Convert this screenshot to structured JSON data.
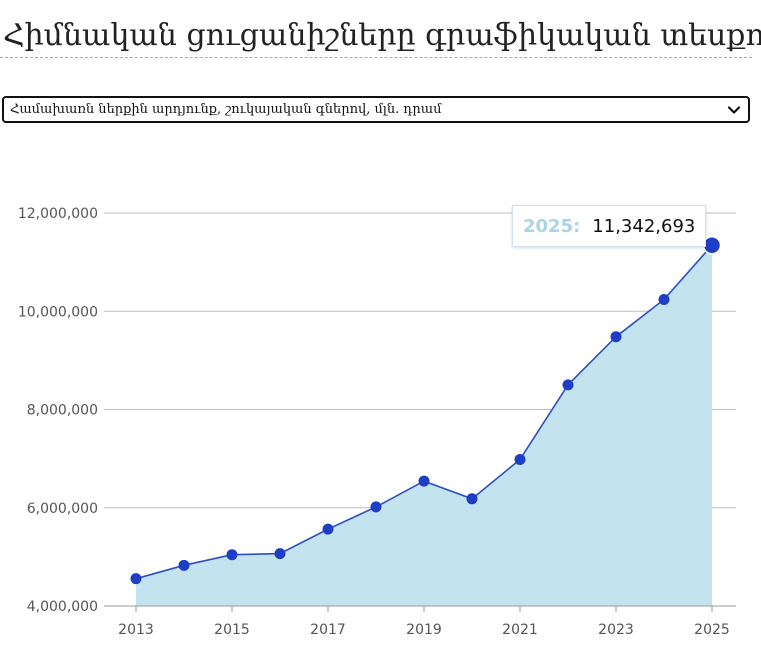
{
  "page": {
    "title": "Հիմնական ցուցանիշները գրաֆիկական տեսքով"
  },
  "selector": {
    "selected": "Համախառն ներքին արդյունք, շուկայական գներով, մլն. դրամ"
  },
  "tooltip": {
    "year": "2025:",
    "value": "11,342,693"
  },
  "colors": {
    "area_fill": "#c3e3ef",
    "line": "#2c4fc1",
    "marker": "#1e3ec6",
    "grid": "#bdbdbd",
    "tick_text": "#555555"
  },
  "chart_data": {
    "type": "area",
    "x": [
      2013,
      2014,
      2015,
      2016,
      2017,
      2018,
      2019,
      2020,
      2021,
      2022,
      2023,
      2024,
      2025
    ],
    "values": [
      4556000,
      4828000,
      5044000,
      5067000,
      5565000,
      6017000,
      6543000,
      6182000,
      6983000,
      8502000,
      9482000,
      10240000,
      11342693
    ],
    "highlighted_point": 2025,
    "ylim": [
      4000000,
      12000000
    ],
    "y_ticks": [
      "4,000,000",
      "6,000,000",
      "8,000,000",
      "10,000,000",
      "12,000,000"
    ],
    "x_ticks": [
      "2013",
      "2015",
      "2017",
      "2019",
      "2021",
      "2023",
      "2025"
    ],
    "grid": "horizontal",
    "title": "",
    "xlabel": "",
    "ylabel": ""
  }
}
